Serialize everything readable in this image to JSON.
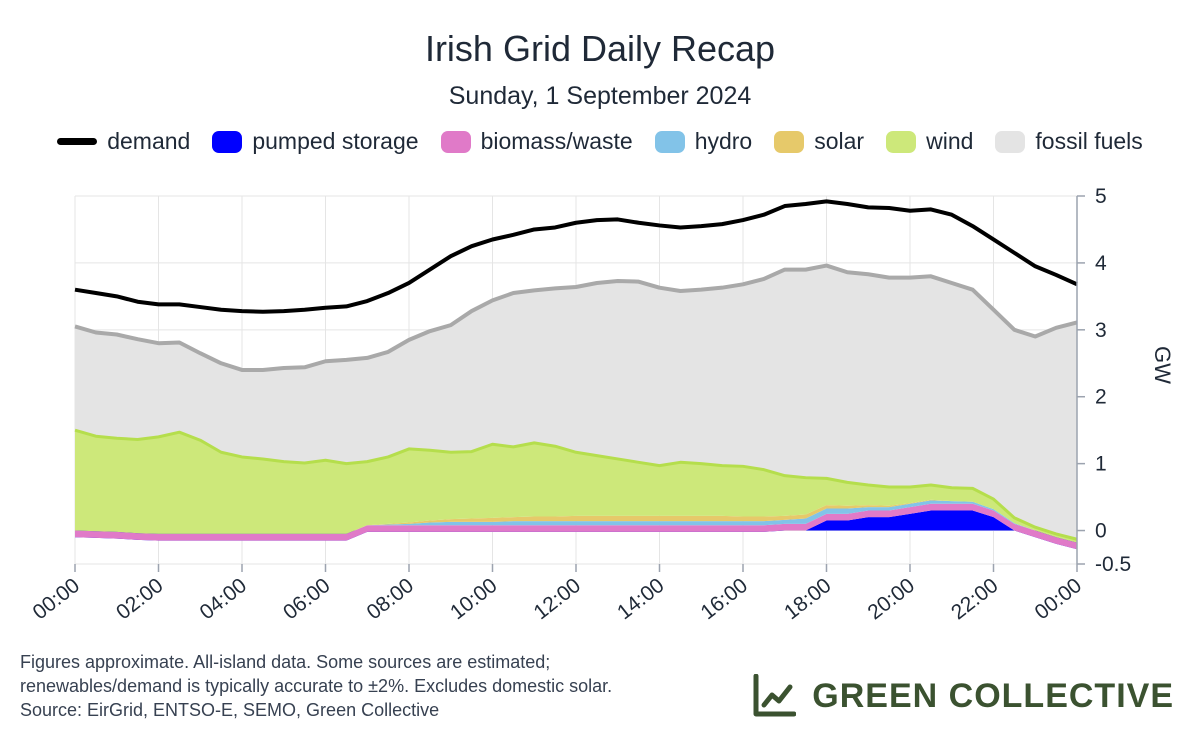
{
  "header": {
    "title": "Irish Grid Daily Recap",
    "subtitle": "Sunday, 1 September 2024"
  },
  "footer": {
    "lines": [
      "Figures approximate. All-island data. Some sources are estimated;",
      "renewables/demand is typically accurate to ±2%. Excludes domestic solar.",
      "Source: EirGrid, ENTSO-E, SEMO, Green Collective"
    ],
    "brand": "GREEN COLLECTIVE",
    "brand_icon": "chart-line-icon",
    "brand_color": "#3b5230"
  },
  "chart_data": {
    "type": "area",
    "title": "Irish Grid Daily Recap",
    "subtitle": "Sunday, 1 September 2024",
    "ylabel": "GW",
    "ylim": [
      -0.5,
      5
    ],
    "yticks": [
      5,
      4,
      3,
      2,
      1,
      0,
      -0.5
    ],
    "xticks": [
      "00:00",
      "02:00",
      "04:00",
      "06:00",
      "08:00",
      "10:00",
      "12:00",
      "14:00",
      "16:00",
      "18:00",
      "20:00",
      "22:00",
      "00:00"
    ],
    "x_hours": [
      0,
      0.5,
      1,
      1.5,
      2,
      2.5,
      3,
      3.5,
      4,
      4.5,
      5,
      5.5,
      6,
      6.5,
      7,
      7.5,
      8,
      8.5,
      9,
      9.5,
      10,
      10.5,
      11,
      11.5,
      12,
      12.5,
      13,
      13.5,
      14,
      14.5,
      15,
      15.5,
      16,
      16.5,
      17,
      17.5,
      18,
      18.5,
      19,
      19.5,
      20,
      20.5,
      21,
      21.5,
      22,
      22.5,
      23,
      23.5,
      24
    ],
    "grid": true,
    "legend_position": "top",
    "series": [
      {
        "name": "pumped storage",
        "color": "#0000ff",
        "kind": "stack",
        "values": [
          -0.1,
          -0.11,
          -0.12,
          -0.14,
          -0.15,
          -0.15,
          -0.15,
          -0.15,
          -0.15,
          -0.15,
          -0.15,
          -0.15,
          -0.15,
          -0.15,
          -0.02,
          -0.02,
          -0.02,
          -0.02,
          -0.02,
          -0.02,
          -0.02,
          -0.02,
          -0.02,
          -0.02,
          -0.02,
          -0.02,
          -0.02,
          -0.02,
          -0.02,
          -0.02,
          -0.02,
          -0.02,
          -0.02,
          -0.02,
          0,
          0,
          0.15,
          0.15,
          0.2,
          0.2,
          0.25,
          0.3,
          0.3,
          0.3,
          0.2,
          0,
          -0.1,
          -0.2,
          -0.28
        ]
      },
      {
        "name": "biomass/waste",
        "color": "#e07ac8",
        "kind": "stack",
        "values": [
          0.1,
          0.1,
          0.1,
          0.1,
          0.1,
          0.1,
          0.1,
          0.1,
          0.1,
          0.1,
          0.1,
          0.1,
          0.1,
          0.1,
          0.1,
          0.1,
          0.1,
          0.1,
          0.1,
          0.1,
          0.1,
          0.1,
          0.1,
          0.1,
          0.1,
          0.1,
          0.1,
          0.1,
          0.1,
          0.1,
          0.1,
          0.1,
          0.1,
          0.1,
          0.1,
          0.1,
          0.1,
          0.1,
          0.1,
          0.1,
          0.1,
          0.1,
          0.1,
          0.1,
          0.1,
          0.1,
          0.1,
          0.1,
          0.1
        ]
      },
      {
        "name": "hydro",
        "color": "#82c3e8",
        "kind": "stack",
        "values": [
          0,
          0,
          0,
          0,
          0,
          0,
          0,
          0,
          0,
          0,
          0,
          0,
          0,
          0,
          0,
          0.01,
          0.02,
          0.04,
          0.05,
          0.05,
          0.05,
          0.06,
          0.06,
          0.06,
          0.06,
          0.06,
          0.06,
          0.06,
          0.06,
          0.06,
          0.06,
          0.06,
          0.06,
          0.06,
          0.06,
          0.08,
          0.08,
          0.08,
          0.05,
          0.05,
          0.05,
          0.05,
          0.04,
          0.03,
          0.02,
          0.01,
          0,
          0,
          0
        ]
      },
      {
        "name": "solar",
        "color": "#e6c96a",
        "kind": "stack",
        "values": [
          0,
          0,
          0,
          0,
          0,
          0,
          0,
          0,
          0,
          0,
          0,
          0,
          0,
          0,
          0,
          0.01,
          0.02,
          0.03,
          0.04,
          0.05,
          0.06,
          0.06,
          0.07,
          0.07,
          0.08,
          0.08,
          0.08,
          0.08,
          0.08,
          0.08,
          0.08,
          0.08,
          0.07,
          0.07,
          0.06,
          0.06,
          0.05,
          0.04,
          0.03,
          0.02,
          0.01,
          0.01,
          0,
          0,
          0,
          0,
          0,
          0,
          0
        ]
      },
      {
        "name": "wind",
        "color": "#cde87a",
        "kind": "stack",
        "values": [
          1.5,
          1.42,
          1.4,
          1.4,
          1.45,
          1.52,
          1.4,
          1.22,
          1.15,
          1.12,
          1.08,
          1.06,
          1.1,
          1.05,
          0.95,
          1.0,
          1.1,
          1.05,
          1.0,
          1.0,
          1.1,
          1.05,
          1.1,
          1.05,
          0.95,
          0.9,
          0.85,
          0.8,
          0.75,
          0.8,
          0.78,
          0.75,
          0.75,
          0.7,
          0.6,
          0.55,
          0.4,
          0.35,
          0.3,
          0.28,
          0.24,
          0.22,
          0.2,
          0.2,
          0.15,
          0.08,
          0.05,
          0.05,
          0.05
        ]
      },
      {
        "name": "fossil fuels",
        "color": "#e4e4e4",
        "kind": "stack",
        "values": [
          1.55,
          1.55,
          1.55,
          1.5,
          1.4,
          1.34,
          1.3,
          1.33,
          1.3,
          1.33,
          1.4,
          1.43,
          1.48,
          1.55,
          1.55,
          1.57,
          1.63,
          1.78,
          1.9,
          2.1,
          2.15,
          2.3,
          2.28,
          2.36,
          2.47,
          2.58,
          2.66,
          2.7,
          2.66,
          2.56,
          2.6,
          2.66,
          2.72,
          2.85,
          3.08,
          3.11,
          3.18,
          3.14,
          3.15,
          3.13,
          3.13,
          3.12,
          3.06,
          2.97,
          2.83,
          2.81,
          2.85,
          3.08,
          3.24
        ]
      },
      {
        "name": "demand",
        "color": "#000000",
        "kind": "line",
        "values": [
          3.6,
          3.55,
          3.5,
          3.42,
          3.38,
          3.38,
          3.34,
          3.3,
          3.28,
          3.27,
          3.28,
          3.3,
          3.33,
          3.35,
          3.43,
          3.55,
          3.7,
          3.9,
          4.1,
          4.25,
          4.35,
          4.42,
          4.5,
          4.53,
          4.6,
          4.64,
          4.65,
          4.6,
          4.56,
          4.53,
          4.55,
          4.58,
          4.64,
          4.72,
          4.85,
          4.88,
          4.92,
          4.88,
          4.83,
          4.82,
          4.78,
          4.8,
          4.72,
          4.55,
          4.35,
          4.15,
          3.95,
          3.82,
          3.68
        ]
      }
    ]
  }
}
